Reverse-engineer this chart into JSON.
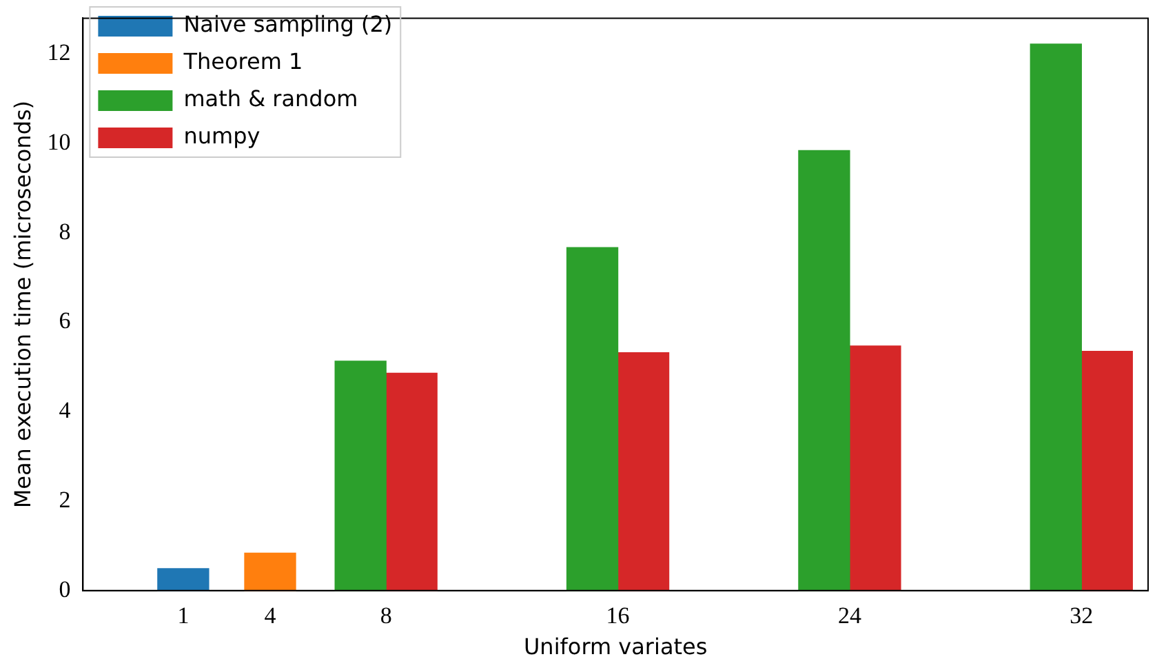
{
  "chart_data": {
    "type": "bar",
    "xlabel": "Uniform variates",
    "ylabel": "Mean execution time (microseconds)",
    "x": [
      1,
      4,
      8,
      16,
      24,
      32
    ],
    "xlim": [
      -2.46,
      34.3
    ],
    "xticks": [
      1,
      4,
      8,
      16,
      24,
      32
    ],
    "ylim": [
      0,
      12.8
    ],
    "yticks": [
      0,
      2,
      4,
      6,
      8,
      10,
      12
    ],
    "grid": false,
    "legend": "top left",
    "series": [
      {
        "name": "Naive sampling (2)",
        "color": "#1f77b4",
        "values": [
          0.49,
          null,
          null,
          null,
          null,
          null
        ]
      },
      {
        "name": "Theorem 1",
        "color": "#ff7f0e",
        "values": [
          null,
          0.84,
          null,
          null,
          null,
          null
        ]
      },
      {
        "name": "math & random",
        "color": "#2ca02c",
        "values": [
          null,
          null,
          5.13,
          7.67,
          9.84,
          12.22
        ]
      },
      {
        "name": "numpy",
        "color": "#d62728",
        "values": [
          null,
          null,
          4.86,
          5.32,
          5.47,
          5.35
        ]
      }
    ]
  }
}
